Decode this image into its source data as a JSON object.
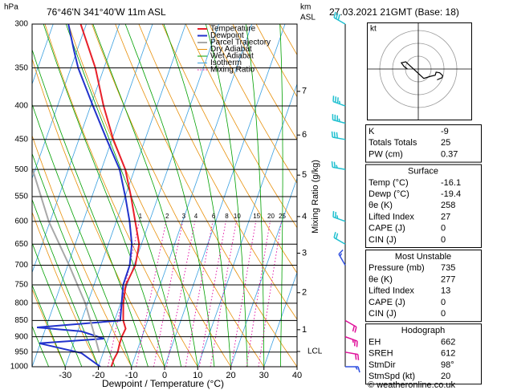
{
  "chart_data": {
    "type": "skew-t",
    "title": "76°46'N  341°40'W  11m  ASL",
    "subtitle": "27.03.2021  21GMT  (Base: 18)",
    "ylabel": "hPa",
    "xlabel": "Dewpoint / Temperature (°C)",
    "log_scale": true,
    "ylim": [
      1000,
      300
    ],
    "yticks": [
      300,
      350,
      400,
      450,
      500,
      550,
      600,
      650,
      700,
      750,
      800,
      850,
      900,
      950,
      1000
    ],
    "xlim": [
      -40,
      40
    ],
    "xticks": [
      -30,
      -20,
      -10,
      0,
      10,
      20,
      30,
      40
    ],
    "grid": true,
    "km_label": [
      "km",
      "ASL"
    ],
    "km_ticks": [
      {
        "value": 878,
        "label": "1"
      },
      {
        "value": 771,
        "label": "2"
      },
      {
        "value": 671,
        "label": "3"
      },
      {
        "value": 590,
        "label": "4"
      },
      {
        "value": 510,
        "label": "5"
      },
      {
        "value": 443,
        "label": "6"
      },
      {
        "value": 380,
        "label": "7"
      }
    ],
    "lcl": {
      "value": 948,
      "label": "LCL"
    },
    "mixing_ratio": {
      "label": "Mixing Ratio (g/kg)",
      "values": [
        1,
        2,
        3,
        4,
        6,
        8,
        10,
        15,
        20,
        25
      ]
    },
    "series": [
      {
        "name": "Temperature",
        "color": "#e8202a",
        "pressure": [
          300,
          350,
          400,
          450,
          500,
          550,
          600,
          650,
          700,
          750,
          800,
          850,
          875,
          900,
          925,
          950,
          975,
          1000
        ],
        "values": [
          -61.7,
          -52.6,
          -46.1,
          -39.6,
          -32.8,
          -28.2,
          -24.3,
          -20.7,
          -19.6,
          -20.4,
          -19.2,
          -17.4,
          -15.8,
          -16.1,
          -16.0,
          -15.7,
          -16.1,
          -16.1
        ]
      },
      {
        "name": "Dewpoint",
        "color": "#2233cc",
        "pressure": [
          300,
          330,
          350,
          400,
          450,
          500,
          550,
          600,
          650,
          700,
          750,
          800,
          850,
          871,
          883,
          906,
          921,
          953,
          1000
        ],
        "values": [
          -65.4,
          -60.8,
          -57.8,
          -49.3,
          -41.6,
          -34.5,
          -29.9,
          -26.0,
          -22.9,
          -21.3,
          -21.2,
          -19.7,
          -18.3,
          -42.7,
          -28.9,
          -21.3,
          -40.3,
          -26.6,
          -19.4
        ]
      },
      {
        "name": "Parcel Trajectory",
        "color": "#a8a8a8",
        "pressure": [
          500,
          600,
          700,
          800,
          900,
          950
        ],
        "values": [
          -60.8,
          -50.4,
          -39.6,
          -30.7,
          -24.2,
          -21.3
        ]
      }
    ],
    "guide_lines": [
      {
        "name": "Dry Adiabat",
        "color": "#e8900a"
      },
      {
        "name": "Wet Adiabat",
        "color": "#00a000"
      },
      {
        "name": "Isotherm",
        "color": "#3aa0e0"
      },
      {
        "name": "Mixing Ratio",
        "color": "#e0009e",
        "style": "dotted"
      }
    ],
    "winds": {
      "pressure": [
        300,
        400,
        425,
        450,
        500,
        600,
        650,
        700,
        850,
        900,
        950,
        1000
      ],
      "direction": [
        300,
        290,
        285,
        280,
        280,
        290,
        300,
        330,
        120,
        110,
        100,
        90
      ],
      "speed": [
        30,
        35,
        35,
        30,
        25,
        25,
        20,
        15,
        20,
        25,
        20,
        15
      ],
      "colors": [
        "#20c0d0",
        "#20c0d0",
        "#20c0d0",
        "#20c0d0",
        "#20c0d0",
        "#20c0d0",
        "#20c0d0",
        "#3050e0",
        "#e0109a",
        "#e0109a",
        "#e0109a",
        "#3050e0"
      ]
    }
  },
  "hodograph_unit": "kt",
  "indices": [
    {
      "rows": [
        [
          "K",
          "-9"
        ],
        [
          "Totals Totals",
          "25"
        ],
        [
          "PW (cm)",
          "0.37"
        ]
      ]
    },
    {
      "title": "Surface",
      "rows": [
        [
          "Temp (°C)",
          "-16.1"
        ],
        [
          "Dewp (°C)",
          "-19.4"
        ],
        [
          "θe (K)",
          "258"
        ],
        [
          "Lifted Index",
          "27"
        ],
        [
          "CAPE (J)",
          "0"
        ],
        [
          "CIN (J)",
          "0"
        ]
      ]
    },
    {
      "title": "Most Unstable",
      "rows": [
        [
          "Pressure (mb)",
          "735"
        ],
        [
          "θe (K)",
          "277"
        ],
        [
          "Lifted Index",
          "13"
        ],
        [
          "CAPE (J)",
          "0"
        ],
        [
          "CIN (J)",
          "0"
        ]
      ]
    },
    {
      "title": "Hodograph",
      "rows": [
        [
          "EH",
          "662"
        ],
        [
          "SREH",
          "612"
        ],
        [
          "StmDir",
          "98°"
        ],
        [
          "StmSpd (kt)",
          "20"
        ]
      ]
    }
  ],
  "footer": "© weatheronline.co.uk"
}
